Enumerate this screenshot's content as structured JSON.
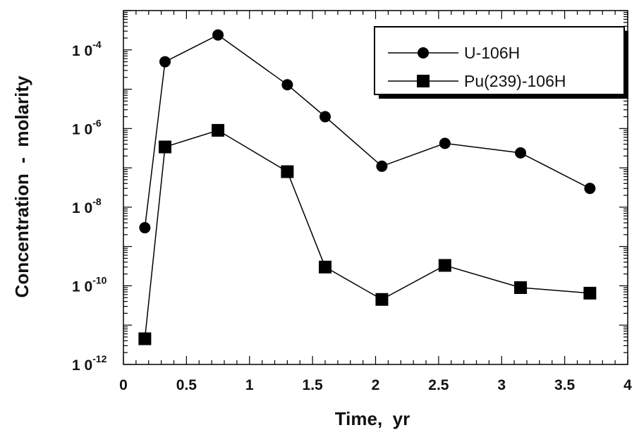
{
  "chart_data": {
    "type": "line",
    "title": "",
    "xlabel": "Time,  yr",
    "ylabel": "Concentration  -  molarity",
    "xlim": [
      0,
      4
    ],
    "ylim": [
      1e-12,
      0.001
    ],
    "yscale": "log",
    "grid": false,
    "legend_position": "top-right",
    "x_ticks": [
      {
        "value": 0,
        "label": "0"
      },
      {
        "value": 0.5,
        "label": "0.5"
      },
      {
        "value": 1,
        "label": "1"
      },
      {
        "value": 1.5,
        "label": "1.5"
      },
      {
        "value": 2,
        "label": "2"
      },
      {
        "value": 2.5,
        "label": "2.5"
      },
      {
        "value": 3,
        "label": "3"
      },
      {
        "value": 3.5,
        "label": "3.5"
      },
      {
        "value": 4,
        "label": "4"
      }
    ],
    "y_ticks": [
      {
        "value": 0.0001,
        "base": "1 0",
        "exp": "-4"
      },
      {
        "value": 1e-06,
        "base": "1 0",
        "exp": "-6"
      },
      {
        "value": 1e-08,
        "base": "1 0",
        "exp": "-8"
      },
      {
        "value": 1e-10,
        "base": "1 0",
        "exp": "-10"
      },
      {
        "value": 1e-12,
        "base": "1 0",
        "exp": "-12"
      }
    ],
    "series": [
      {
        "name": "U-106H",
        "marker": "circle",
        "color": "#000000",
        "x": [
          0.17,
          0.33,
          0.75,
          1.3,
          1.6,
          2.05,
          2.55,
          3.15,
          3.7
        ],
        "y": [
          3e-09,
          5e-05,
          0.00024,
          1.3e-05,
          2e-06,
          1.1e-07,
          4.2e-07,
          2.4e-07,
          3e-08
        ]
      },
      {
        "name": "Pu(239)-106H",
        "marker": "square",
        "color": "#000000",
        "x": [
          0.17,
          0.33,
          0.75,
          1.3,
          1.6,
          2.05,
          2.55,
          3.15,
          3.7
        ],
        "y": [
          4.5e-12,
          3.4e-07,
          9e-07,
          8e-08,
          3e-10,
          4.5e-11,
          3.3e-10,
          9e-11,
          6.5e-11
        ]
      }
    ]
  }
}
